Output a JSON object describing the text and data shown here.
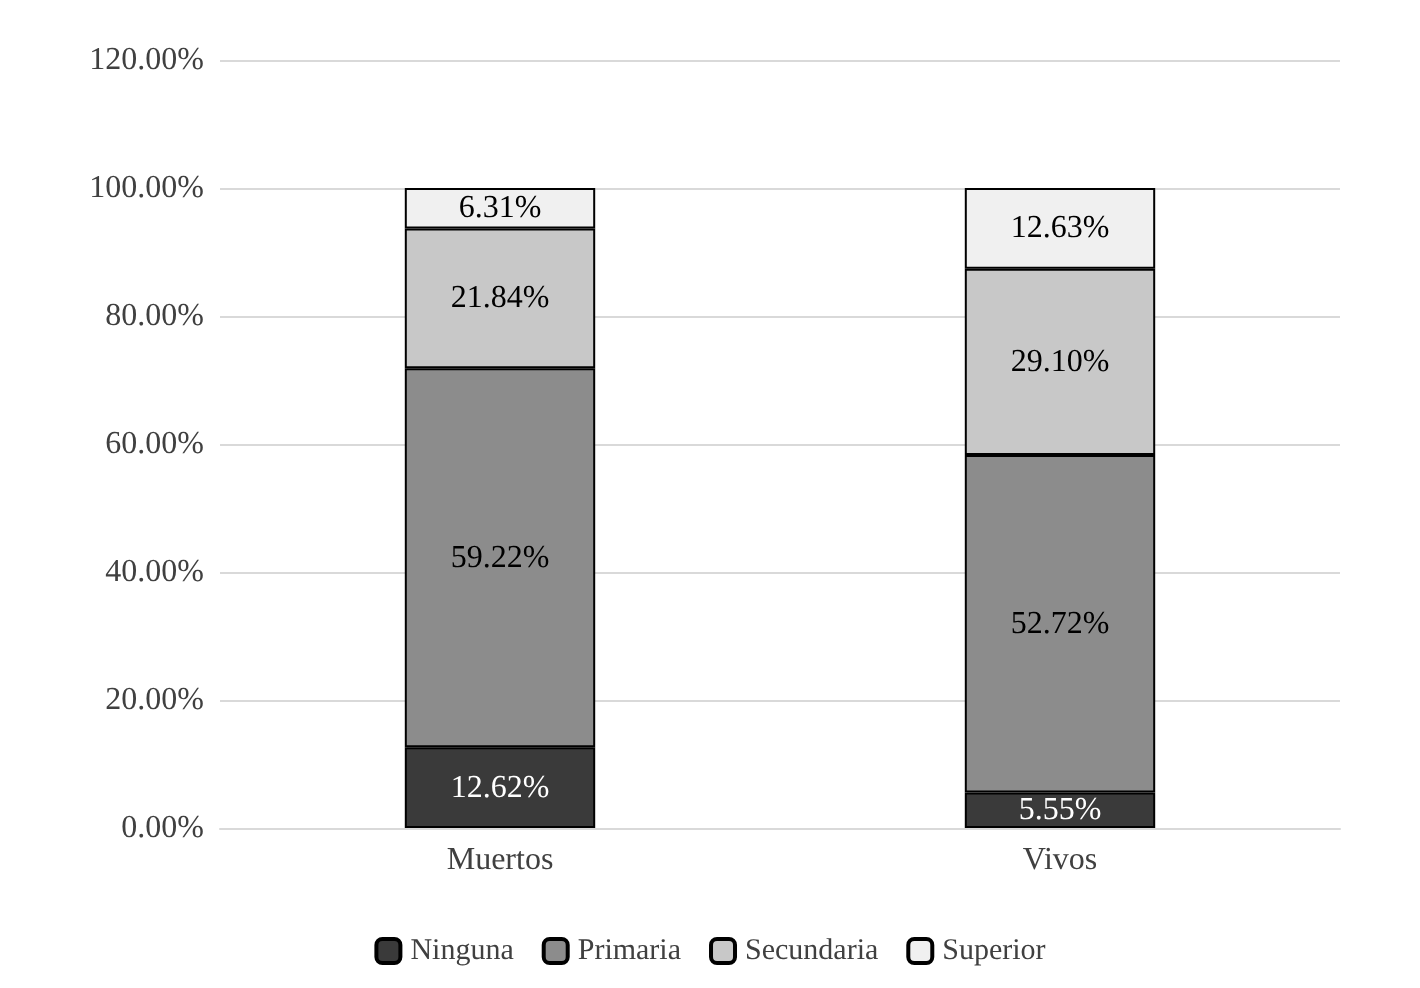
{
  "chart_data": {
    "type": "bar",
    "stacked": true,
    "categories": [
      "Muertos",
      "Vivos"
    ],
    "series": [
      {
        "name": "Ninguna",
        "color": "#3a3a3a",
        "values": [
          12.62,
          5.55
        ],
        "value_labels": [
          "12.62%",
          "5.55%"
        ]
      },
      {
        "name": "Primaria",
        "color": "#8c8c8c",
        "values": [
          59.22,
          52.72
        ],
        "value_labels": [
          "59.22%",
          "52.72%"
        ]
      },
      {
        "name": "Secundaria",
        "color": "#c8c8c8",
        "values": [
          21.84,
          29.1
        ],
        "value_labels": [
          "21.84%",
          "29.10%"
        ]
      },
      {
        "name": "Superior",
        "color": "#f0f0f0",
        "values": [
          6.31,
          12.63
        ],
        "value_labels": [
          "6.31%",
          "12.63%"
        ]
      }
    ],
    "ylim": [
      0,
      120
    ],
    "yticks": [
      {
        "value": 0,
        "label": "0.00%"
      },
      {
        "value": 20,
        "label": "20.00%"
      },
      {
        "value": 40,
        "label": "40.00%"
      },
      {
        "value": 60,
        "label": "60.00%"
      },
      {
        "value": 80,
        "label": "80.00%"
      },
      {
        "value": 100,
        "label": "100.00%"
      },
      {
        "value": 120,
        "label": "120.00%"
      }
    ],
    "grid": "y",
    "legend": "bottom"
  }
}
